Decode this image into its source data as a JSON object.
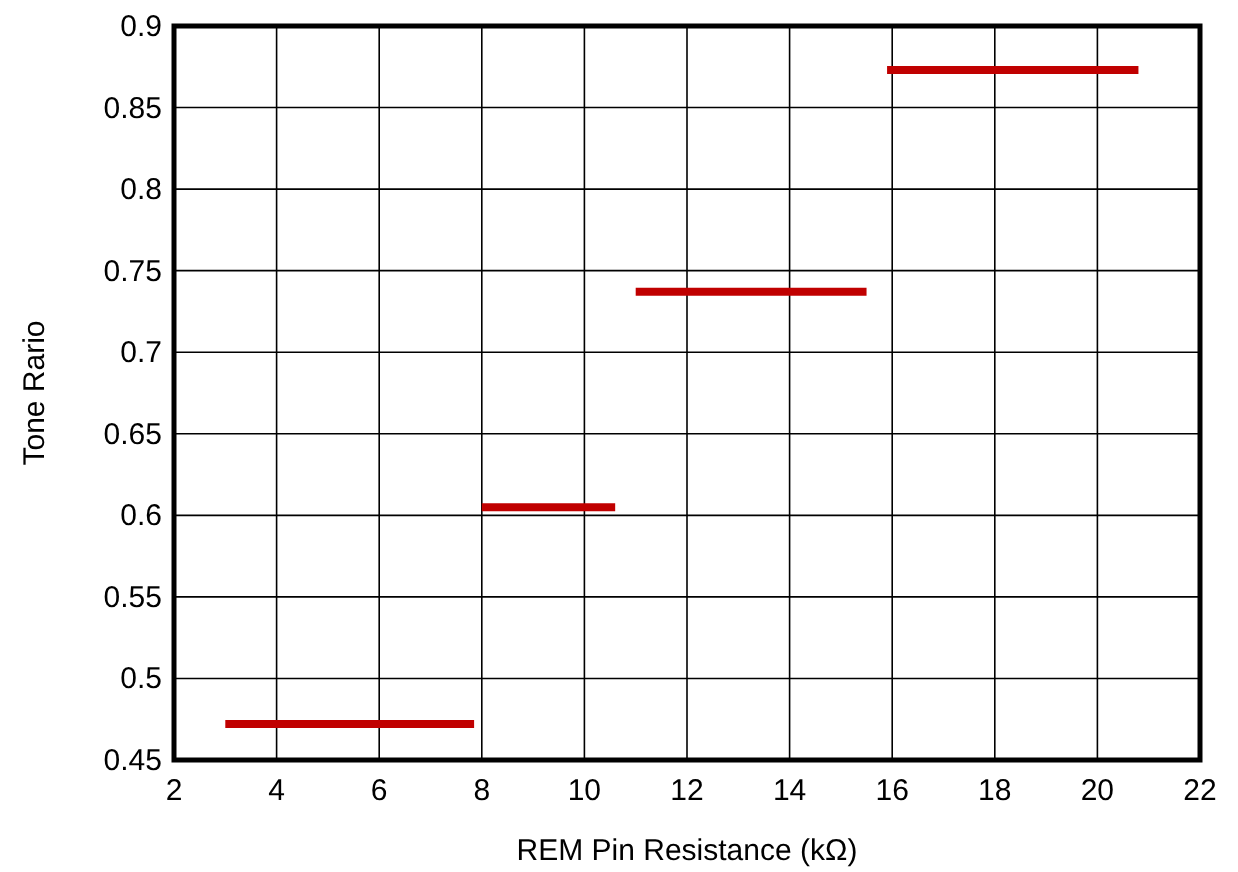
{
  "chart_data": {
    "type": "line",
    "xlabel": "REM Pin Resistance (kΩ)",
    "ylabel": "Tone Rario",
    "xlim": [
      2,
      22
    ],
    "xticks": [
      2,
      4,
      6,
      8,
      10,
      12,
      14,
      16,
      18,
      20,
      22
    ],
    "ylim": [
      0.45,
      0.9
    ],
    "yticks": [
      0.45,
      0.5,
      0.55,
      0.6,
      0.65,
      0.7,
      0.75,
      0.8,
      0.85,
      0.9
    ],
    "grid": true,
    "marker": "none",
    "series": [
      {
        "color": "#c00000",
        "x": [
          3.0,
          7.85
        ],
        "values": [
          0.472,
          0.472
        ]
      },
      {
        "color": "#c00000",
        "x": [
          8.0,
          10.6
        ],
        "values": [
          0.605,
          0.605
        ]
      },
      {
        "color": "#c00000",
        "x": [
          11.0,
          15.5
        ],
        "values": [
          0.737,
          0.737
        ]
      },
      {
        "color": "#c00000",
        "x": [
          15.9,
          20.8
        ],
        "values": [
          0.873,
          0.873
        ]
      }
    ]
  }
}
